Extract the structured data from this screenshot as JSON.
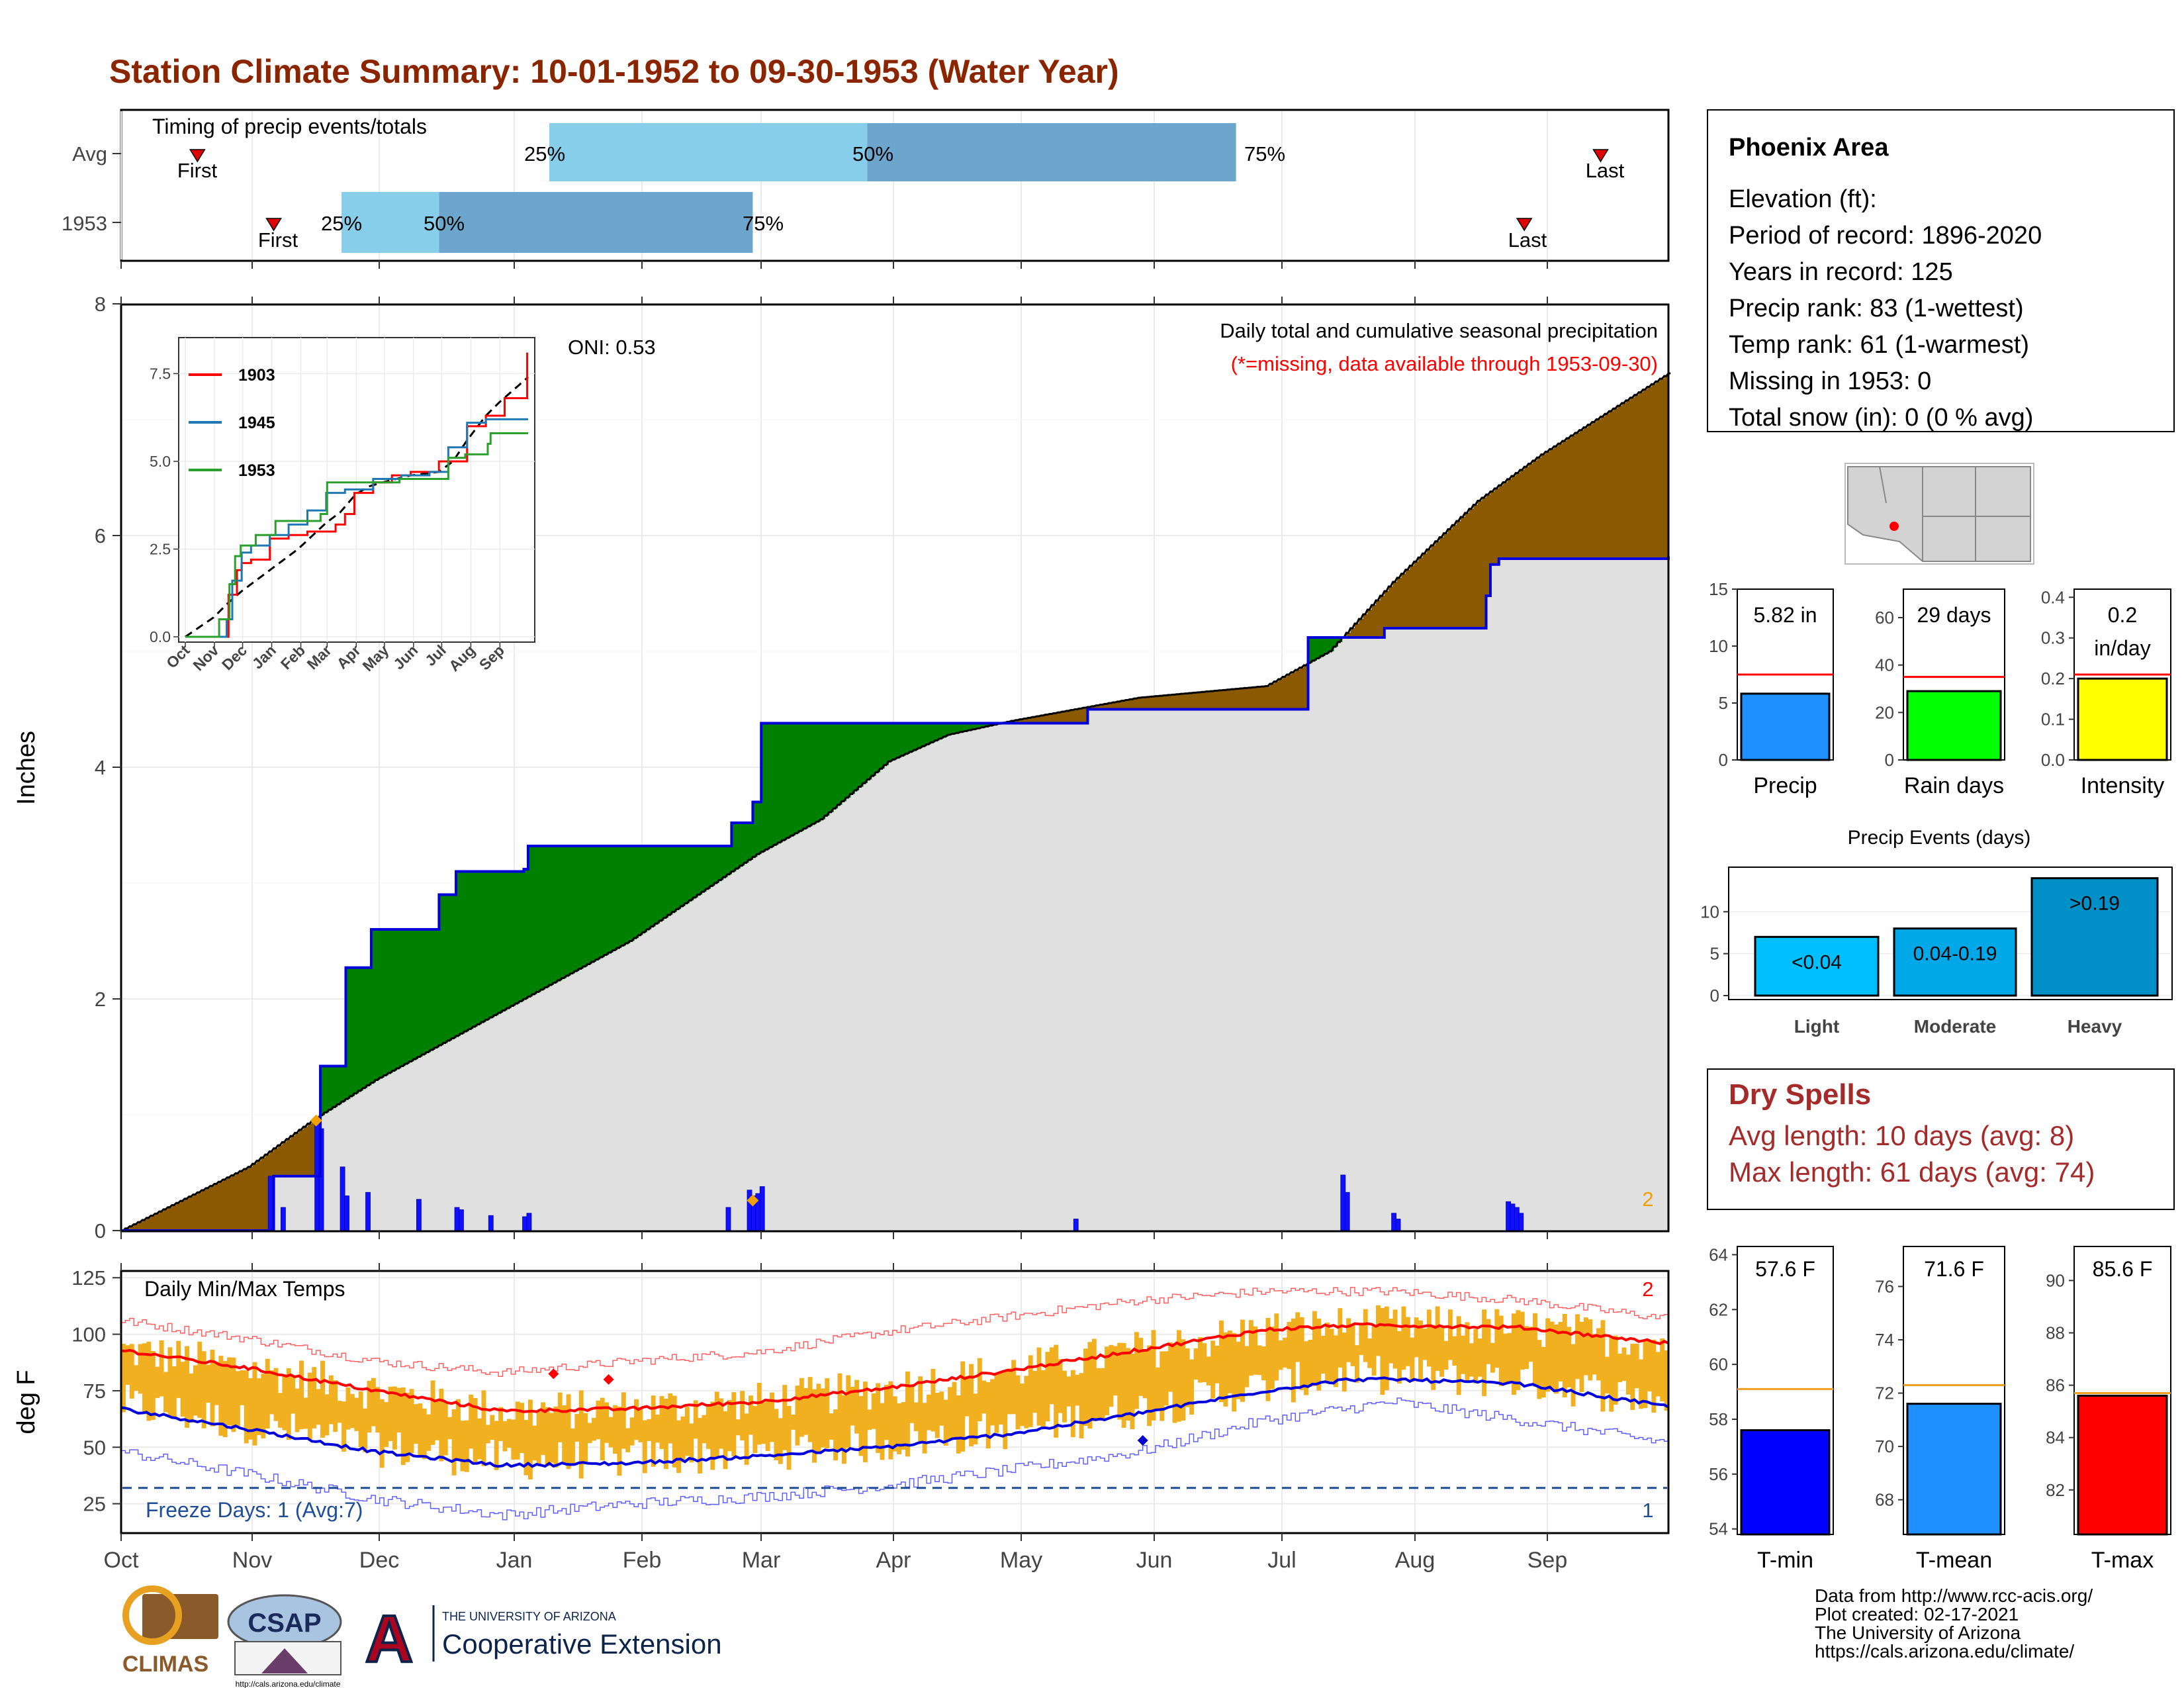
{
  "title": "Station Climate Summary: 10-01-1952 to 09-30-1953 (Water Year)",
  "colors": {
    "title": "#8B2500",
    "light_blue": "#87CEEB",
    "steel_blue": "#6CA6CD",
    "brown": "#8B5A00",
    "green": "#008000",
    "gray_fill": "#E0E0E0",
    "blue": "#0000FF",
    "orange": "#F0B020",
    "red": "#FF0000",
    "dry_spell_text": "#A52A2A"
  },
  "months": [
    "Oct",
    "Nov",
    "Dec",
    "Jan",
    "Feb",
    "Mar",
    "Apr",
    "May",
    "Jun",
    "Jul",
    "Aug",
    "Sep"
  ],
  "timing": {
    "label": "Timing of precip events/totals",
    "rows": [
      {
        "name": "Avg",
        "first_label": "First",
        "last_label": "Last",
        "p25": "25%",
        "p50": "50%",
        "p75": "75%",
        "first_day": 18,
        "last_day": 349,
        "p25_day": 101,
        "p50_day": 176,
        "p75_day": 263
      },
      {
        "name": "1953",
        "first_label": "First",
        "last_label": "Last",
        "p25": "25%",
        "p50": "50%",
        "p75": "75%",
        "first_day": 36,
        "last_day": 331,
        "p25_day": 52,
        "p50_day": 75,
        "p75_day": 149
      }
    ]
  },
  "precip_chart": {
    "ylabel": "Inches",
    "yticks": [
      "0",
      "2",
      "4",
      "6",
      "8"
    ],
    "ylim": [
      0,
      8
    ],
    "subtitle": "Daily total and cumulative seasonal precipitation",
    "missing_note": "(*=missing, data available through 1953-09-30)",
    "oni": "ONI: 0.53",
    "count_label": "2",
    "avg_cumulative": {
      "x": [
        0,
        30,
        45,
        60,
        90,
        120,
        150,
        165,
        181,
        195,
        210,
        240,
        270,
        285,
        300,
        320,
        335,
        365
      ],
      "y": [
        0,
        0.55,
        0.95,
        1.3,
        1.9,
        2.5,
        3.25,
        3.55,
        4.05,
        4.28,
        4.4,
        4.6,
        4.7,
        5.0,
        5.6,
        6.3,
        6.7,
        7.4
      ]
    },
    "year_cumulative": {
      "x": [
        0,
        35,
        36,
        46,
        47,
        52,
        53,
        58,
        59,
        70,
        75,
        76,
        79,
        80,
        87,
        88,
        95,
        96,
        143,
        144,
        148,
        149,
        151,
        160,
        220,
        228,
        279,
        280,
        297,
        298,
        321,
        322,
        323,
        325,
        365
      ],
      "y": [
        0,
        0,
        0.47,
        0.47,
        1.42,
        1.42,
        2.27,
        2.27,
        2.6,
        2.6,
        2.9,
        2.9,
        3.1,
        3.1,
        3.1,
        3.1,
        3.12,
        3.32,
        3.32,
        3.52,
        3.52,
        3.7,
        4.38,
        4.38,
        4.38,
        4.5,
        4.5,
        5.12,
        5.12,
        5.2,
        5.2,
        5.48,
        5.75,
        5.8,
        5.82
      ]
    },
    "daily_bars": {
      "x": [
        35,
        38,
        46,
        47,
        52,
        53,
        58,
        70,
        79,
        80,
        87,
        95,
        96,
        143,
        148,
        149,
        150,
        151,
        225,
        288,
        289,
        300,
        301,
        327,
        328,
        329,
        330
      ],
      "y": [
        0.47,
        0.2,
        0.95,
        0.88,
        0.55,
        0.3,
        0.33,
        0.27,
        0.2,
        0.18,
        0.13,
        0.12,
        0.15,
        0.2,
        0.35,
        0.3,
        0.32,
        0.38,
        0.1,
        0.48,
        0.33,
        0.15,
        0.1,
        0.25,
        0.23,
        0.2,
        0.15
      ]
    }
  },
  "inset": {
    "legend": [
      "1903",
      "1945",
      "1953"
    ],
    "legend_colors": [
      "#FF0000",
      "#1F77B4",
      "#2CA02C"
    ],
    "yticks": [
      "0.0",
      "2.5",
      "5.0",
      "7.5"
    ],
    "xticks": [
      "Oct",
      "Nov",
      "Dec",
      "Jan",
      "Feb",
      "Mar",
      "Apr",
      "May",
      "Jun",
      "Jul",
      "Aug",
      "Sep"
    ]
  },
  "temp_chart": {
    "ylabel": "deg F",
    "label": "Daily Min/Max Temps",
    "yticks": [
      "25",
      "50",
      "75",
      "100",
      "125"
    ],
    "ylim": [
      12,
      128
    ],
    "freeze_label": "Freeze Days: 1 (Avg:7)",
    "freeze_line": 32,
    "top_count": "2",
    "bottom_count": "1",
    "avg_max": {
      "x": [
        0,
        30,
        60,
        90,
        120,
        150,
        180,
        210,
        240,
        270,
        290,
        300,
        330,
        365
      ],
      "y": [
        93,
        85,
        75,
        66,
        67,
        70,
        76,
        84,
        93,
        102,
        104,
        104,
        103,
        96
      ]
    },
    "avg_min": {
      "x": [
        0,
        30,
        60,
        90,
        120,
        150,
        180,
        210,
        240,
        270,
        290,
        300,
        330,
        365
      ],
      "y": [
        67,
        58,
        48,
        42,
        43,
        46,
        50,
        56,
        65,
        75,
        80,
        80,
        78,
        68
      ]
    },
    "rec_max": {
      "x": [
        0,
        30,
        60,
        90,
        120,
        150,
        180,
        210,
        240,
        270,
        300,
        330,
        365
      ],
      "y": [
        106,
        98,
        88,
        83,
        88,
        92,
        101,
        108,
        115,
        119,
        119,
        115,
        107
      ]
    },
    "rec_min": {
      "x": [
        0,
        30,
        60,
        90,
        120,
        150,
        180,
        210,
        240,
        270,
        300,
        330,
        365
      ],
      "y": [
        48,
        38,
        27,
        20,
        25,
        28,
        33,
        40,
        48,
        62,
        70,
        62,
        52
      ]
    }
  },
  "station": {
    "name": "Phoenix Area",
    "lines": [
      "Elevation (ft):",
      "Period of record: 1896-2020",
      "Years in record: 125",
      "Precip rank: 83 (1-wettest)",
      "Temp rank: 61 (1-warmest)",
      "Missing in 1953: 0",
      "Total snow (in): 0 (0 % avg)"
    ]
  },
  "bars_top": [
    {
      "label": "Precip",
      "value_text": "5.82 in",
      "value": 5.82,
      "avg": 7.5,
      "ymax": 15,
      "ticks": [
        "0",
        "5",
        "10",
        "15"
      ],
      "tickvals": [
        0,
        5,
        10,
        15
      ],
      "color": "#1E90FF"
    },
    {
      "label": "Rain days",
      "value_text": "29 days",
      "value": 29,
      "avg": 35,
      "ymax": 72,
      "ticks": [
        "0",
        "20",
        "40",
        "60"
      ],
      "tickvals": [
        0,
        20,
        40,
        60
      ],
      "color": "#00FF00"
    },
    {
      "label": "Intensity",
      "value_text": "0.2\nin/day",
      "value_line1": "0.2",
      "value_line2": "in/day",
      "value": 0.2,
      "avg": 0.21,
      "ymax": 0.42,
      "ticks": [
        "0.0",
        "0.1",
        "0.2",
        "0.3",
        "0.4"
      ],
      "tickvals": [
        0,
        0.1,
        0.2,
        0.3,
        0.4
      ],
      "color": "#FFFF00"
    }
  ],
  "events": {
    "title": "Precip Events (days)",
    "ticks": [
      "0",
      "5",
      "10"
    ],
    "items": [
      {
        "label": "Light",
        "value_text": "<0.04",
        "value": 7
      },
      {
        "label": "Moderate",
        "value_text": "0.04-0.19",
        "value": 8
      },
      {
        "label": "Heavy",
        "value_text": ">0.19",
        "value": 14
      }
    ]
  },
  "dry_spells": {
    "title": "Dry Spells",
    "avg": "Avg length: 10 days (avg: 8)",
    "max": "Max length: 61 days (avg: 74)"
  },
  "temp_bars": [
    {
      "label": "T-min",
      "value_text": "57.6 F",
      "value": 57.6,
      "avg": 59.1,
      "ymin": 53.8,
      "ymax": 64.3,
      "ticks": [
        "54",
        "56",
        "58",
        "60",
        "62",
        "64"
      ],
      "tickvals": [
        54,
        56,
        58,
        60,
        62,
        64
      ],
      "color": "#0000FF"
    },
    {
      "label": "T-mean",
      "value_text": "71.6 F",
      "value": 71.6,
      "avg": 72.3,
      "ymin": 66.7,
      "ymax": 77.5,
      "ticks": [
        "68",
        "70",
        "72",
        "74",
        "76"
      ],
      "tickvals": [
        68,
        70,
        72,
        74,
        76
      ],
      "color": "#1E90FF"
    },
    {
      "label": "T-max",
      "value_text": "85.6 F",
      "value": 85.6,
      "avg": 85.7,
      "ymin": 80.3,
      "ymax": 91.3,
      "ticks": [
        "82",
        "84",
        "86",
        "88",
        "90"
      ],
      "tickvals": [
        82,
        84,
        86,
        88,
        90
      ],
      "color": "#FF0000"
    }
  ],
  "footer": {
    "credits": [
      "Data from http://www.rcc-acis.org/",
      "Plot created: 02-17-2021",
      "The University of Arizona",
      "https://cals.arizona.edu/climate/"
    ],
    "climas": "CLIMAS",
    "csap": "CSAP",
    "csap_url": "http://cals.arizona.edu/climate",
    "ua_small": "THE UNIVERSITY OF ARIZONA",
    "ua_big": "Cooperative Extension",
    "ua_letter": "A"
  }
}
